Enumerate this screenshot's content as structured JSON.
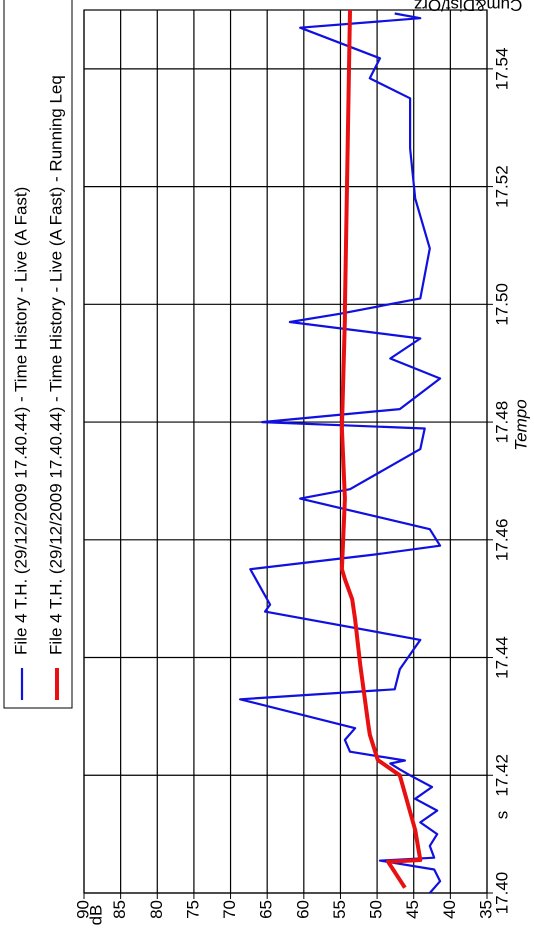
{
  "chart_data": {
    "type": "line",
    "annotation": "Cum&Dist/Orz",
    "x_label": "Tempo",
    "x_unit": "s",
    "y_label": "dB",
    "xlim": [
      17.4,
      17.55
    ],
    "xticks": [
      {
        "value": 17.4,
        "label": "17.40"
      },
      17.42,
      17.44,
      17.46,
      17.48,
      {
        "value": 17.5,
        "label": "17.50"
      },
      17.52,
      17.54
    ],
    "ylim": [
      35,
      90
    ],
    "yticks": [
      35,
      40,
      45,
      50,
      55,
      60,
      65,
      70,
      75,
      80,
      85,
      90
    ],
    "grid": true,
    "series": [
      {
        "name": "File 4 T.H. (29/12/2009 17.40.44) - Time History - Live (A Fast)",
        "color": "#1010e0",
        "x": [
          17.4,
          17.402,
          17.404,
          17.4055,
          17.406,
          17.408,
          17.41,
          17.412,
          17.414,
          17.416,
          17.418,
          17.42,
          17.421,
          17.422,
          17.4225,
          17.424,
          17.426,
          17.428,
          17.4329,
          17.4346,
          17.438,
          17.443,
          17.4478,
          17.449,
          17.455,
          17.4575,
          17.459,
          17.4618,
          17.467,
          17.4686,
          17.4754,
          17.4789,
          17.48,
          17.4822,
          17.4874,
          17.4908,
          17.4942,
          17.497,
          17.4984,
          17.501,
          17.5095,
          17.518,
          17.5265,
          17.535,
          17.5384,
          17.5418,
          17.547,
          17.5486,
          17.5494
        ],
        "values": [
          42.8,
          41.4,
          42.2,
          49.6,
          42.2,
          42.8,
          41.8,
          44.1,
          41.8,
          44.8,
          42.5,
          45.5,
          46.9,
          48.2,
          46.2,
          53.7,
          54.4,
          53.0,
          68.7,
          47.6,
          46.9,
          44.1,
          65.3,
          64.6,
          67.3,
          50.3,
          41.4,
          42.8,
          60.5,
          53.7,
          44.1,
          43.5,
          65.7,
          46.9,
          41.4,
          48.2,
          44.1,
          61.9,
          55.1,
          44.1,
          42.8,
          44.8,
          45.5,
          45.5,
          51.0,
          49.6,
          60.5,
          44.1,
          47.6
        ]
      },
      {
        "name": "File 4 T.H. (29/12/2009 17.40.44) - Time History - Live (A Fast) - Running Leq",
        "color": "#e81010",
        "x": [
          17.4009,
          17.4053,
          17.4056,
          17.4107,
          17.42,
          17.4226,
          17.4269,
          17.4286,
          17.4388,
          17.4465,
          17.4499,
          17.4533,
          17.455,
          17.467,
          17.4789,
          17.4976,
          17.4992,
          17.55
        ],
        "values": [
          46.2,
          48.5,
          44.1,
          44.8,
          46.9,
          49.9,
          51.0,
          51.2,
          52.3,
          53.0,
          53.4,
          54.4,
          54.8,
          54.4,
          54.8,
          54.4,
          54.4,
          53.7
        ]
      }
    ]
  }
}
